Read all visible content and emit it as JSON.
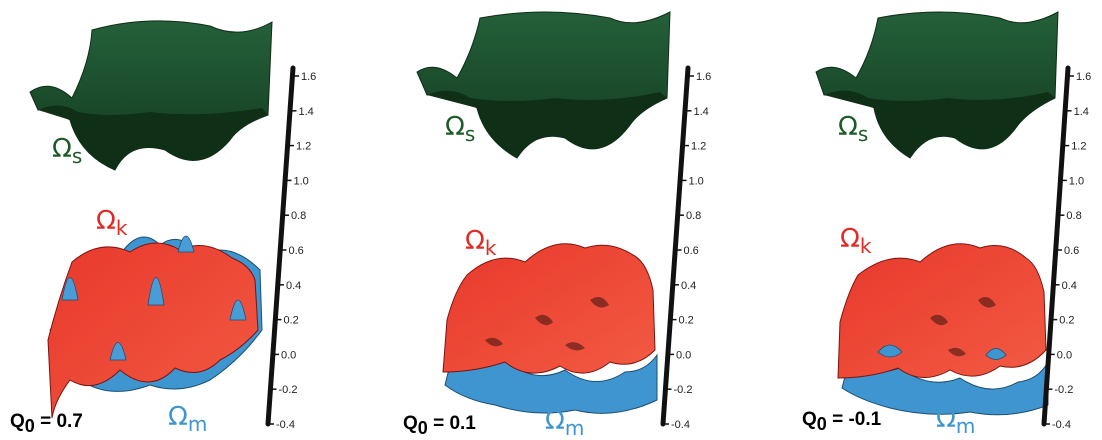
{
  "labels": {
    "omega_s": "Ω",
    "omega_s_sub": "s",
    "omega_k": "Ω",
    "omega_k_sub": "k",
    "omega_m": "Ω",
    "omega_m_sub": "m",
    "q_prefix": "Q",
    "q_sub": "0"
  },
  "axis": {
    "ticks": [
      "1.6",
      "1.4",
      "1.2",
      "1.0",
      "0.8",
      "0.6",
      "0.4",
      "0.2",
      "0.0",
      "-0.2",
      "-0.4"
    ]
  },
  "panels": [
    {
      "q_text": " = 0.7"
    },
    {
      "q_text": " = 0.1"
    },
    {
      "q_text": " = -0.1"
    }
  ],
  "colors": {
    "omega_s": "#1c5a26",
    "omega_k": "#e02a24",
    "omega_m": "#3f95cf",
    "axis": "#111111"
  }
}
